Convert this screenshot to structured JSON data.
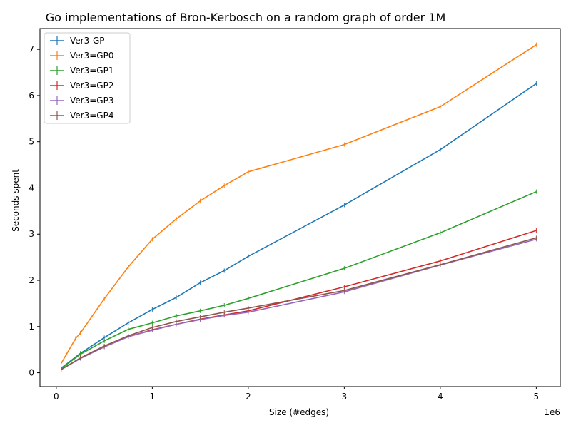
{
  "chart_data": {
    "type": "line",
    "title": "Go implementations of Bron-Kerbosch on a random graph of order 1M",
    "xlabel": "Size (#edges)",
    "ylabel": "Seconds spent",
    "x_offset_label": "1e6",
    "x_scale_factor": 1000000,
    "xlim": [
      -170000,
      5250000
    ],
    "ylim": [
      -0.3,
      7.45
    ],
    "x_ticks": [
      0,
      1000000,
      2000000,
      3000000,
      4000000,
      5000000
    ],
    "x_tick_labels": [
      "0",
      "1",
      "2",
      "3",
      "4",
      "5"
    ],
    "y_ticks": [
      0,
      1,
      2,
      3,
      4,
      5,
      6,
      7
    ],
    "y_tick_labels": [
      "0",
      "1",
      "2",
      "3",
      "4",
      "5",
      "6",
      "7"
    ],
    "legend_position": "top-left",
    "grid": false,
    "series": [
      {
        "name": "Ver3-GP",
        "color": "#1f77b4",
        "x": [
          50000,
          250000,
          500000,
          750000,
          1000000,
          1250000,
          1500000,
          1750000,
          2000000,
          3000000,
          4000000,
          5000000
        ],
        "y": [
          0.1,
          0.42,
          0.76,
          1.08,
          1.37,
          1.63,
          1.95,
          2.21,
          2.52,
          3.63,
          4.83,
          6.26
        ]
      },
      {
        "name": "Ver3=GP0",
        "color": "#ff7f0e",
        "x": [
          50000,
          100000,
          200000,
          250000,
          500000,
          750000,
          1000000,
          1250000,
          1500000,
          1750000,
          2000000,
          3000000,
          4000000,
          5000000
        ],
        "y": [
          0.2,
          0.38,
          0.74,
          0.86,
          1.6,
          2.29,
          2.89,
          3.33,
          3.72,
          4.05,
          4.35,
          4.94,
          5.76,
          7.1
        ]
      },
      {
        "name": "Ver3=GP1",
        "color": "#2ca02c",
        "x": [
          50000,
          250000,
          500000,
          750000,
          1000000,
          1250000,
          1500000,
          1750000,
          2000000,
          3000000,
          4000000,
          5000000
        ],
        "y": [
          0.09,
          0.4,
          0.69,
          0.94,
          1.08,
          1.23,
          1.34,
          1.46,
          1.61,
          2.26,
          3.03,
          3.92
        ]
      },
      {
        "name": "Ver3=GP2",
        "color": "#d62728",
        "x": [
          50000,
          250000,
          500000,
          750000,
          1000000,
          1250000,
          1500000,
          1750000,
          2000000,
          3000000,
          4000000,
          5000000
        ],
        "y": [
          0.07,
          0.31,
          0.56,
          0.78,
          0.93,
          1.05,
          1.16,
          1.25,
          1.34,
          1.86,
          2.42,
          3.08
        ]
      },
      {
        "name": "Ver3=GP3",
        "color": "#9467bd",
        "x": [
          50000,
          250000,
          500000,
          750000,
          1000000,
          1250000,
          1500000,
          1750000,
          2000000,
          3000000,
          4000000,
          5000000
        ],
        "y": [
          0.07,
          0.31,
          0.56,
          0.78,
          0.92,
          1.05,
          1.15,
          1.24,
          1.31,
          1.75,
          2.33,
          2.89
        ]
      },
      {
        "name": "Ver3=GP4",
        "color": "#8c564b",
        "x": [
          50000,
          250000,
          500000,
          750000,
          1000000,
          1250000,
          1500000,
          1750000,
          2000000,
          3000000,
          4000000,
          5000000
        ],
        "y": [
          0.07,
          0.32,
          0.58,
          0.8,
          0.98,
          1.11,
          1.21,
          1.31,
          1.4,
          1.78,
          2.34,
          2.92
        ]
      }
    ]
  }
}
